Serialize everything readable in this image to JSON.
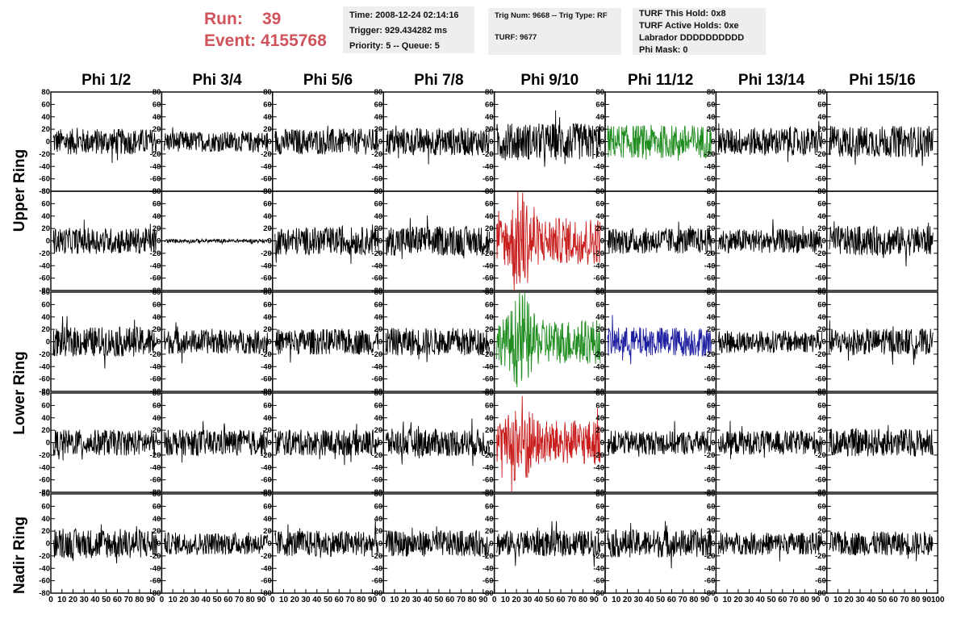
{
  "header": {
    "run_label": "Run:",
    "run_value": "39",
    "event_label": "Event:",
    "event_value": "4155768",
    "time": "Time: 2008-12-24 02:14:16",
    "trigger": "Trigger: 929.434282 ms",
    "priority": "Priority: 5 -- Queue: 5",
    "trig_num": "Trig Num: 9668 -- Trig Type: RF",
    "turf": "TURF: 9677",
    "turf_hold": "TURF This Hold: 0x8",
    "turf_active": "TURF Active Holds: 0xe",
    "labrador": "Labrador DDDDDDDDDD",
    "phi_mask": "Phi Mask: 0"
  },
  "columns": [
    "Phi 1/2",
    "Phi 3/4",
    "Phi 5/6",
    "Phi 7/8",
    "Phi 9/10",
    "Phi 11/12",
    "Phi 13/14",
    "Phi 15/16"
  ],
  "ring_labels": [
    "Upper Ring",
    "Lower Ring",
    "Nadir Ring"
  ],
  "colors": {
    "title_red": "#d0525a",
    "green": "#1e8c1e",
    "red": "#c81e1e",
    "blue": "#1e1ea0",
    "black": "#000000",
    "info_bg": "#eeeeee"
  },
  "chart_data": {
    "type": "line",
    "description_axes": "8 phi columns x 5 rows of waveforms",
    "ylim": [
      -80,
      80
    ],
    "y_ticks": [
      -80,
      -60,
      -40,
      -20,
      0,
      20,
      40,
      60,
      80
    ],
    "xlim": [
      0,
      100
    ],
    "x_ticks": [
      0,
      10,
      20,
      30,
      40,
      50,
      60,
      70,
      80,
      90,
      100
    ],
    "x_tick_labels_bottom": "0 10 20 30 40 50 60 70 80 90 10",
    "x_tick_labels_last": "0 10 20 30 40 50 60 70 80 90 100",
    "rows": [
      {
        "amplitudes": [
          14,
          11,
          14,
          15,
          20,
          18,
          15,
          17
        ],
        "colors": [
          "black",
          "black",
          "black",
          "black",
          "black",
          "green",
          "black",
          "black"
        ]
      },
      {
        "amplitudes": [
          14,
          2,
          15,
          16,
          25,
          14,
          13,
          16
        ],
        "colors": [
          "black",
          "black",
          "black",
          "black",
          "red",
          "black",
          "black",
          "black"
        ]
      },
      {
        "amplitudes": [
          16,
          13,
          14,
          15,
          24,
          16,
          12,
          14
        ],
        "colors": [
          "black",
          "black",
          "black",
          "black",
          "green",
          "blue",
          "black",
          "black"
        ]
      },
      {
        "amplitudes": [
          14,
          14,
          14,
          15,
          24,
          13,
          13,
          15
        ],
        "colors": [
          "black",
          "black",
          "black",
          "black",
          "red",
          "black",
          "black",
          "black"
        ]
      },
      {
        "amplitudes": [
          16,
          12,
          14,
          14,
          14,
          15,
          12,
          13
        ],
        "colors": [
          "black",
          "black",
          "black",
          "black",
          "black",
          "black",
          "black",
          "black"
        ]
      }
    ]
  }
}
